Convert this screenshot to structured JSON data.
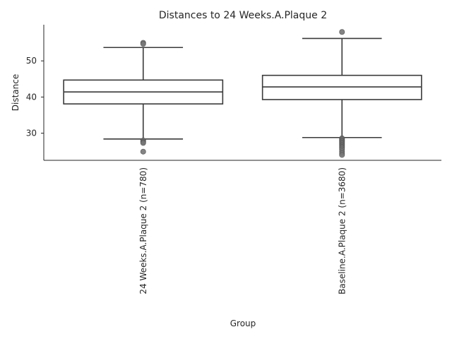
{
  "chart_data": {
    "type": "box",
    "title": "Distances to 24 Weeks.A.Plaque 2",
    "xlabel": "Group",
    "ylabel": "Distance",
    "ylim": [
      22.5,
      60.0
    ],
    "yticks": [
      30,
      40,
      50
    ],
    "grid": false,
    "categories": [
      "24 Weeks.A.Plaque 2 (n=780)",
      "Baseline.A.Plaque 2 (n=3680)"
    ],
    "boxes": [
      {
        "category": "24 Weeks.A.Plaque 2 (n=780)",
        "whisker_low": 28.4,
        "q1": 38.1,
        "median": 41.4,
        "q3": 44.7,
        "whisker_high": 53.7,
        "outliers": [
          55.0,
          54.7,
          28.0,
          27.6,
          27.3,
          24.9
        ]
      },
      {
        "category": "Baseline.A.Plaque 2 (n=3680)",
        "whisker_low": 28.8,
        "q1": 39.3,
        "median": 42.8,
        "q3": 46.0,
        "whisker_high": 56.2,
        "outliers": [
          58.0,
          28.6,
          28.3,
          28.0,
          27.7,
          27.4,
          27.1,
          26.8,
          26.5,
          26.2,
          25.9,
          25.5,
          25.0,
          24.5,
          24.0
        ]
      }
    ],
    "colors": {
      "box_line": "#3a3a3a",
      "outlier": "#777777",
      "spine": "#262626"
    }
  }
}
